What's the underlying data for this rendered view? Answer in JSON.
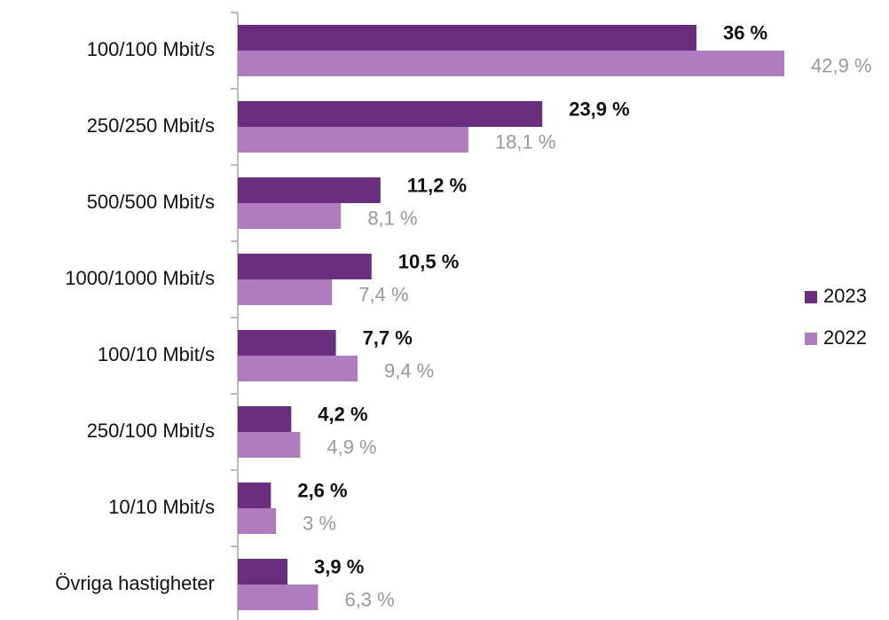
{
  "chart_data": {
    "type": "bar",
    "orientation": "horizontal",
    "categories": [
      "100/100 Mbit/s",
      "250/250 Mbit/s",
      "500/500 Mbit/s",
      "1000/1000 Mbit/s",
      "100/10 Mbit/s",
      "250/100 Mbit/s",
      "10/10 Mbit/s",
      "Övriga hastigheter"
    ],
    "series": [
      {
        "name": "2023",
        "color": "#6b2d7e",
        "values": [
          36,
          23.9,
          11.2,
          10.5,
          7.7,
          4.2,
          2.6,
          3.9
        ],
        "value_labels": [
          "36 %",
          "23,9 %",
          "11,2 %",
          "10,5 %",
          "7,7 %",
          "4,2 %",
          "2,6 %",
          "3,9 %"
        ]
      },
      {
        "name": "2022",
        "color": "#b07cc0",
        "values": [
          42.9,
          18.1,
          8.1,
          7.4,
          9.4,
          4.9,
          3,
          6.3
        ],
        "value_labels": [
          "42,9 %",
          "18,1 %",
          "8,1 %",
          "7,4 %",
          "9,4 %",
          "4,9 %",
          "3 %",
          "6,3 %"
        ]
      }
    ],
    "xlim": [
      0,
      50
    ],
    "legend": "right"
  }
}
